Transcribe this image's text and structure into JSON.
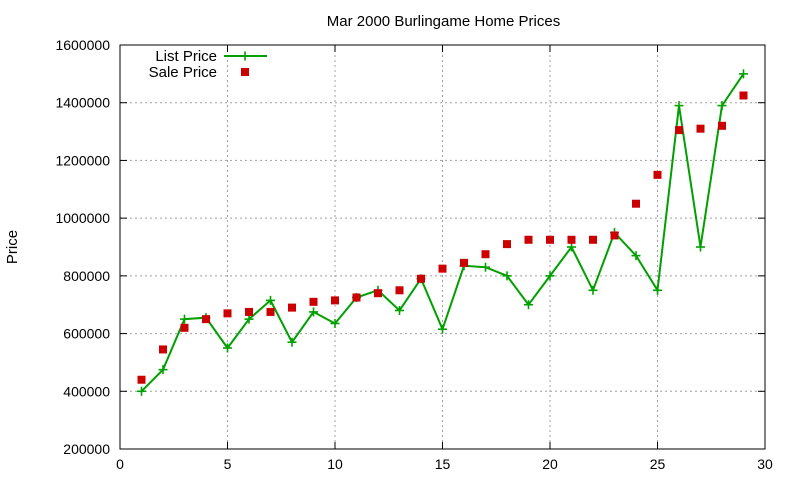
{
  "chart_data": {
    "type": "line",
    "title": "Mar 2000 Burlingame Home Prices",
    "xlabel": "",
    "ylabel": "Price",
    "xlim": [
      0,
      30
    ],
    "ylim": [
      200000,
      1600000
    ],
    "xticks": [
      0,
      5,
      10,
      15,
      20,
      25,
      30
    ],
    "yticks": [
      200000,
      400000,
      600000,
      800000,
      1000000,
      1200000,
      1400000,
      1600000
    ],
    "grid": true,
    "legend_position": "top-left",
    "series": [
      {
        "name": "List Price",
        "style": "line-with-plus-markers",
        "color": "#00a000",
        "x": [
          1,
          2,
          3,
          4,
          5,
          6,
          7,
          8,
          9,
          10,
          11,
          12,
          13,
          14,
          15,
          16,
          17,
          18,
          19,
          20,
          21,
          22,
          23,
          24,
          25,
          26,
          27,
          28,
          29
        ],
        "y": [
          400000,
          475000,
          650000,
          655000,
          550000,
          650000,
          715000,
          570000,
          675000,
          635000,
          725000,
          750000,
          680000,
          790000,
          615000,
          835000,
          830000,
          800000,
          700000,
          800000,
          900000,
          750000,
          950000,
          870000,
          750000,
          1390000,
          900000,
          1390000,
          1500000
        ]
      },
      {
        "name": "Sale Price",
        "style": "square-markers",
        "color": "#cc0000",
        "x": [
          1,
          2,
          3,
          4,
          5,
          6,
          7,
          8,
          9,
          10,
          11,
          12,
          13,
          14,
          15,
          16,
          17,
          18,
          19,
          20,
          21,
          22,
          23,
          24,
          25,
          26,
          27,
          28,
          29
        ],
        "y": [
          440000,
          545000,
          620000,
          650000,
          670000,
          675000,
          675000,
          690000,
          710000,
          715000,
          725000,
          740000,
          750000,
          790000,
          825000,
          845000,
          875000,
          910000,
          925000,
          925000,
          925000,
          925000,
          940000,
          1050000,
          1150000,
          1305000,
          1310000,
          1320000,
          1425000
        ]
      }
    ]
  }
}
